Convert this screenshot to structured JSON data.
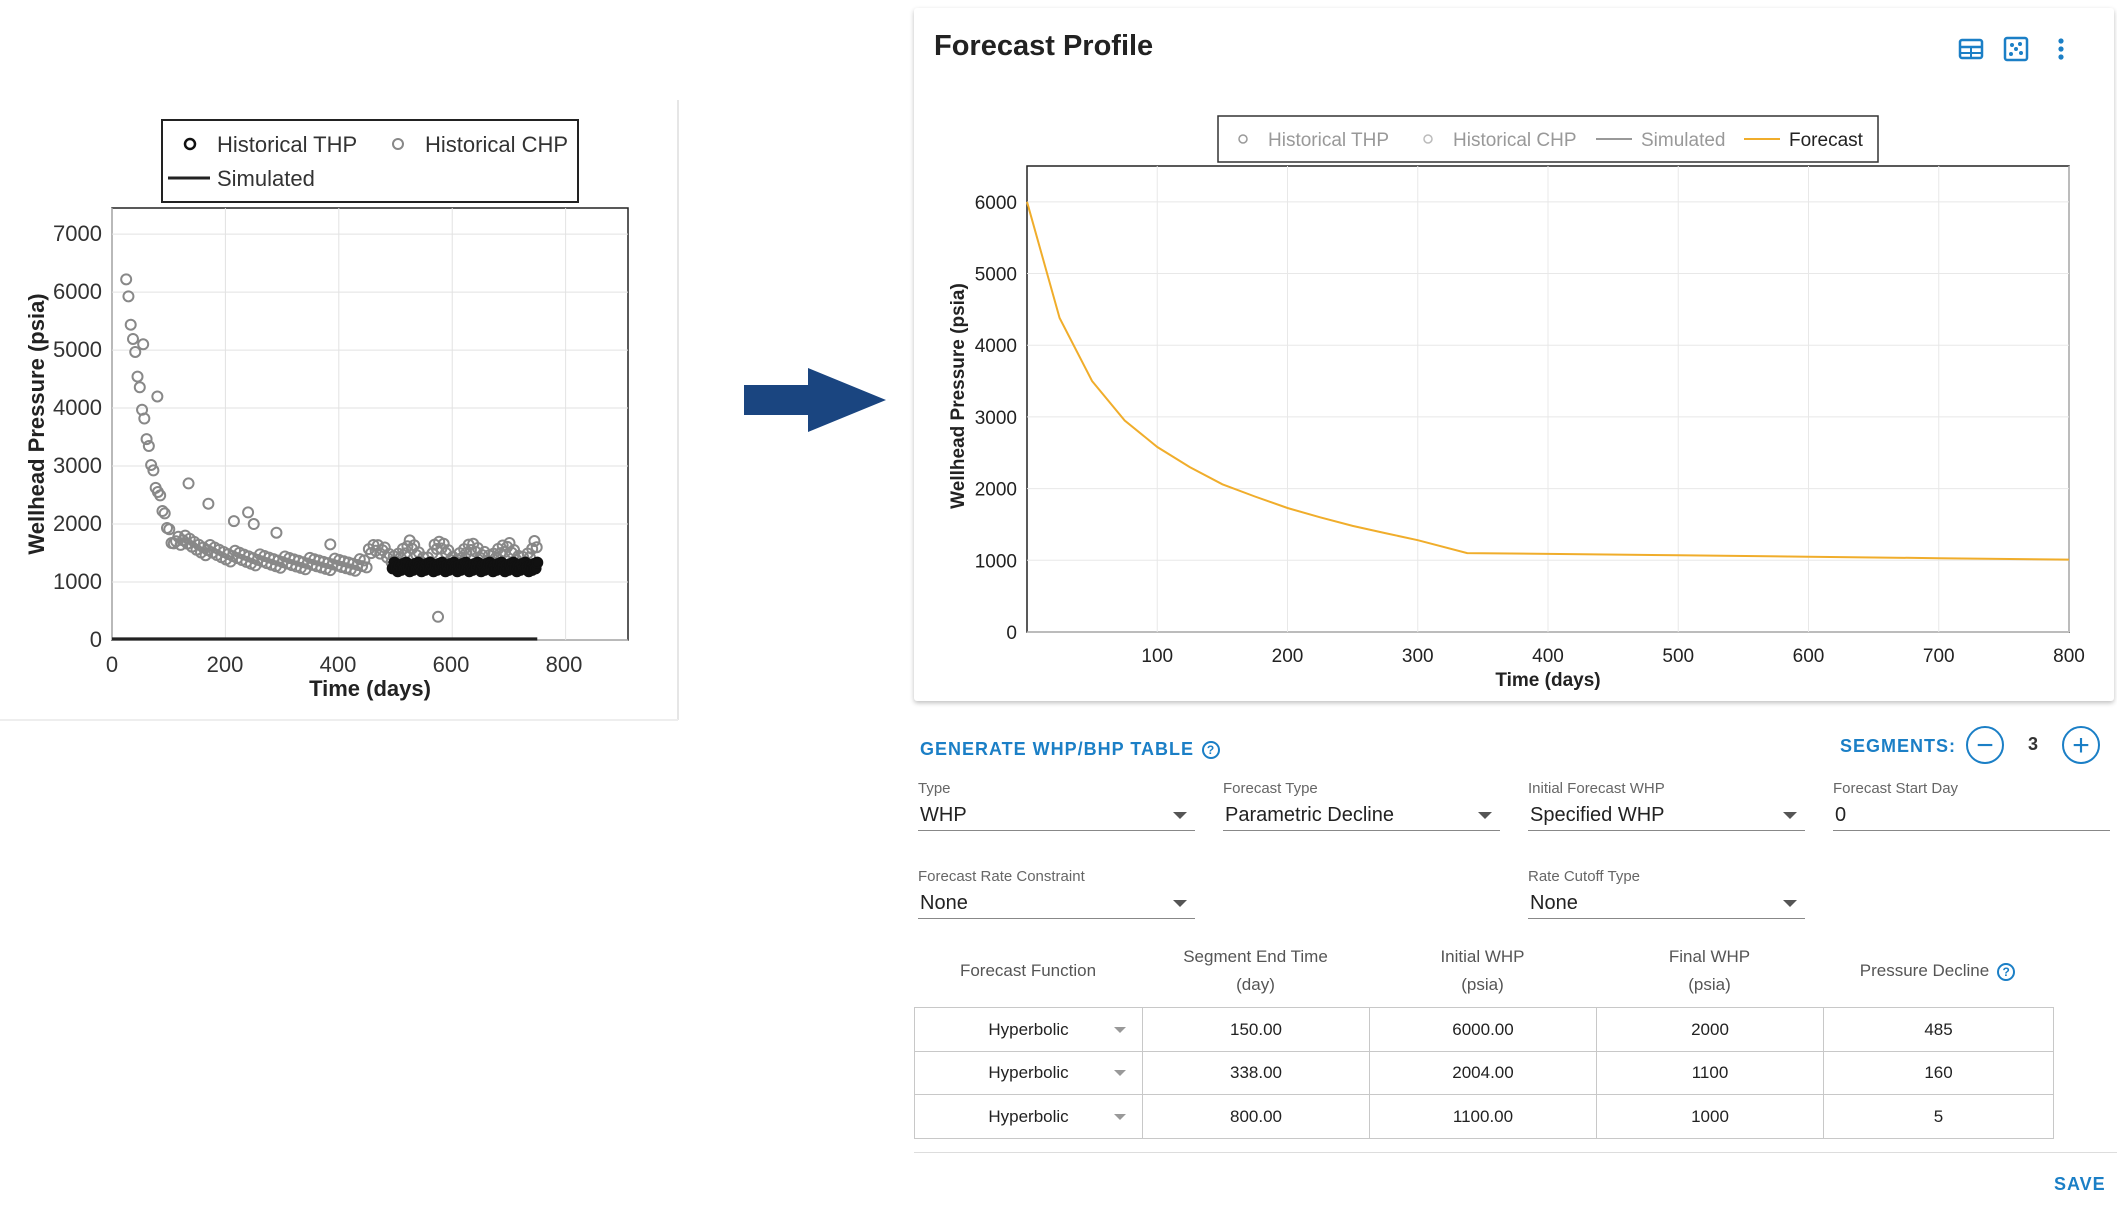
{
  "left_chart": {
    "legend": [
      "Historical THP",
      "Historical CHP",
      "Simulated"
    ],
    "ylabel": "Wellhead Pressure (psia)",
    "xlabel": "Time (days)",
    "yticks": [
      "0",
      "1000",
      "2000",
      "3000",
      "4000",
      "5000",
      "6000",
      "7000"
    ],
    "xticks": [
      "0",
      "200",
      "400",
      "600",
      "800"
    ]
  },
  "arrow": {
    "color": "#1a4580",
    "icon": "right-arrow-icon"
  },
  "forecast": {
    "title": "Forecast Profile",
    "icons": [
      "table-icon",
      "scatter-icon",
      "more-vert-icon"
    ]
  },
  "chart_data": {
    "type": "line",
    "xlabel": "Time (days)",
    "ylabel": "Wellhead Pressure (psia)",
    "xlim": [
      0,
      800
    ],
    "ylim": [
      0,
      6500
    ],
    "xticks": [
      "100",
      "200",
      "300",
      "400",
      "500",
      "600",
      "700",
      "800"
    ],
    "yticks": [
      "0",
      "1000",
      "2000",
      "3000",
      "4000",
      "5000",
      "6000"
    ],
    "grid": true,
    "legend_position": "top",
    "legend": [
      {
        "name": "Historical THP",
        "kind": "marker"
      },
      {
        "name": "Historical CHP",
        "kind": "marker"
      },
      {
        "name": "Simulated",
        "kind": "line"
      },
      {
        "name": "Forecast",
        "kind": "line"
      }
    ],
    "series": [
      {
        "name": "Forecast",
        "color": "#f0ad2b",
        "x": [
          0,
          25,
          50,
          75,
          100,
          125,
          150,
          175,
          200,
          225,
          250,
          275,
          300,
          338,
          400,
          500,
          600,
          700,
          800
        ],
        "y": [
          6000,
          4380,
          3500,
          2950,
          2580,
          2300,
          2060,
          1890,
          1730,
          1600,
          1480,
          1380,
          1280,
          1100,
          1090,
          1070,
          1050,
          1030,
          1010
        ]
      }
    ]
  },
  "controls": {
    "generate_label": "GENERATE WHP/BHP TABLE",
    "help_glyph": "?",
    "segments_label": "SEGMENTS:",
    "segments_count": "3",
    "minus_glyph": "−",
    "plus_glyph": "+",
    "fields": {
      "type": {
        "label": "Type",
        "value": "WHP"
      },
      "forecast_type": {
        "label": "Forecast Type",
        "value": "Parametric Decline"
      },
      "initial_whp": {
        "label": "Initial Forecast WHP",
        "value": "Specified WHP"
      },
      "start_day": {
        "label": "Forecast Start Day",
        "value": "0"
      },
      "rate_constraint": {
        "label": "Forecast Rate Constraint",
        "value": "None"
      },
      "cutoff_type": {
        "label": "Rate Cutoff Type",
        "value": "None"
      }
    },
    "table": {
      "headers": [
        {
          "line1": "Forecast Function",
          "line2": ""
        },
        {
          "line1": "Segment End Time",
          "line2": "(day)"
        },
        {
          "line1": "Initial WHP",
          "line2": "(psia)"
        },
        {
          "line1": "Final WHP",
          "line2": "(psia)"
        },
        {
          "line1": "Pressure Decline",
          "line2": ""
        }
      ],
      "rows": [
        [
          "Hyperbolic",
          "150.00",
          "6000.00",
          "2000",
          "485"
        ],
        [
          "Hyperbolic",
          "338.00",
          "2004.00",
          "1100",
          "160"
        ],
        [
          "Hyperbolic",
          "800.00",
          "1100.00",
          "1000",
          "5"
        ]
      ]
    },
    "save_label": "SAVE"
  }
}
